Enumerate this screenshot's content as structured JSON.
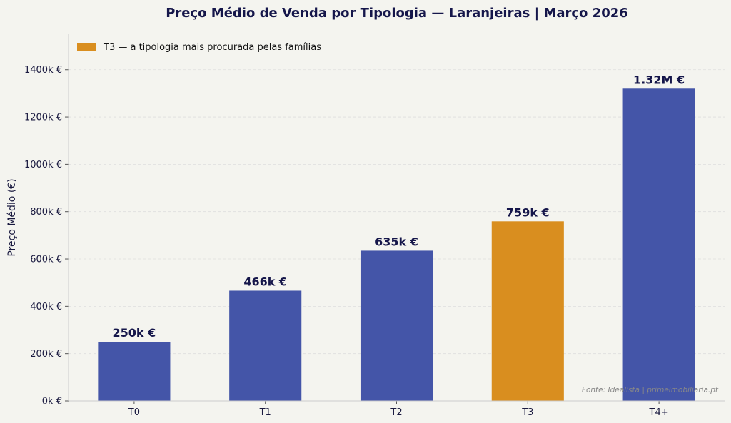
{
  "chart_data": {
    "type": "bar",
    "title": "Preço Médio de Venda por Tipologia — Laranjeiras | Março 2026",
    "xlabel": "",
    "ylabel": "Preço Médio (€)",
    "categories": [
      "T0",
      "T1",
      "T2",
      "T3",
      "T4+"
    ],
    "values": [
      250,
      466,
      635,
      759,
      1320
    ],
    "value_unit": "k €",
    "data_labels": [
      "250k €",
      "466k €",
      "635k €",
      "759k €",
      "1.32M €"
    ],
    "ylim": [
      0,
      1550
    ],
    "yticks": [
      0,
      200,
      400,
      600,
      800,
      1000,
      1200,
      1400
    ],
    "ytick_labels": [
      "0k €",
      "200k €",
      "400k €",
      "600k €",
      "800k €",
      "1000k €",
      "1200k €",
      "1400k €"
    ],
    "grid": "horizontal dashed",
    "highlight_category": "T3",
    "legend": {
      "placement": "top-left",
      "entries": [
        "T3 — a tipologia mais procurada pelas famílias"
      ]
    },
    "source": "Fonte: Idealista | primeimobiliaria.pt",
    "colors": {
      "default": "#4455a8",
      "highlight": "#d98e1f",
      "background": "#f4f4ef",
      "text": "#15164a"
    }
  }
}
